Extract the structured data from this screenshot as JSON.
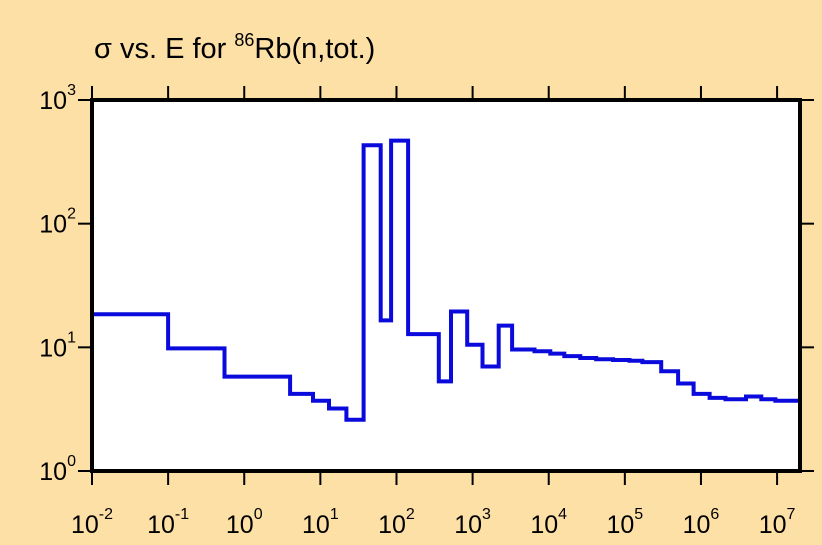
{
  "chart_data": {
    "type": "line",
    "step": true,
    "title": {
      "prefix": "σ vs. E for ",
      "isotope_mass": "86",
      "reaction": "Rb(n,tot.)"
    },
    "xlabel": "",
    "ylabel": "",
    "x_scale": "log",
    "y_scale": "log",
    "xlim": [
      0.01,
      20000000
    ],
    "ylim": [
      1,
      1000
    ],
    "grid": false,
    "colors": {
      "background": "#fde0a6",
      "plot_area": "#ffffff",
      "series": "#0a0adc",
      "axes": "#000000"
    },
    "x_ticks": [
      {
        "value": 0.01,
        "base": "10",
        "exp": "-2"
      },
      {
        "value": 0.1,
        "base": "10",
        "exp": "-1"
      },
      {
        "value": 1,
        "base": "10",
        "exp": "0"
      },
      {
        "value": 10,
        "base": "10",
        "exp": "1"
      },
      {
        "value": 100,
        "base": "10",
        "exp": "2"
      },
      {
        "value": 1000,
        "base": "10",
        "exp": "3"
      },
      {
        "value": 10000,
        "base": "10",
        "exp": "4"
      },
      {
        "value": 100000,
        "base": "10",
        "exp": "5"
      },
      {
        "value": 1000000,
        "base": "10",
        "exp": "6"
      },
      {
        "value": 10000000,
        "base": "10",
        "exp": "7"
      }
    ],
    "y_ticks": [
      {
        "value": 1,
        "base": "10",
        "exp": "0"
      },
      {
        "value": 10,
        "base": "10",
        "exp": "1"
      },
      {
        "value": 100,
        "base": "10",
        "exp": "2"
      },
      {
        "value": 1000,
        "base": "10",
        "exp": "3"
      }
    ],
    "series": [
      {
        "name": "",
        "points": [
          [
            0.01,
            1
          ],
          [
            0.01,
            18.5
          ],
          [
            0.1,
            18.5
          ],
          [
            0.1,
            9.8
          ],
          [
            0.55,
            9.8
          ],
          [
            0.55,
            5.8
          ],
          [
            4.0,
            5.8
          ],
          [
            4.0,
            4.2
          ],
          [
            8.0,
            4.2
          ],
          [
            8.0,
            3.7
          ],
          [
            13.0,
            3.7
          ],
          [
            13.0,
            3.2
          ],
          [
            22.0,
            3.2
          ],
          [
            22.0,
            2.6
          ],
          [
            37.0,
            2.6
          ],
          [
            37.0,
            430
          ],
          [
            62.0,
            430
          ],
          [
            62.0,
            16.5
          ],
          [
            85.0,
            16.5
          ],
          [
            85.0,
            470
          ],
          [
            142.0,
            470
          ],
          [
            142.0,
            12.8
          ],
          [
            360.0,
            12.8
          ],
          [
            360.0,
            5.3
          ],
          [
            520.0,
            5.3
          ],
          [
            520.0,
            19.5
          ],
          [
            850.0,
            19.5
          ],
          [
            850.0,
            10.5
          ],
          [
            1350.0,
            10.5
          ],
          [
            1350.0,
            7.0
          ],
          [
            2200.0,
            7.0
          ],
          [
            2200.0,
            15.0
          ],
          [
            3300.0,
            15.0
          ],
          [
            3300.0,
            9.6
          ],
          [
            6500.0,
            9.6
          ],
          [
            6500.0,
            9.3
          ],
          [
            10500.0,
            9.3
          ],
          [
            10500.0,
            8.9
          ],
          [
            16000.0,
            8.9
          ],
          [
            16000.0,
            8.5
          ],
          [
            26000.0,
            8.5
          ],
          [
            26000.0,
            8.2
          ],
          [
            42000.0,
            8.2
          ],
          [
            42000.0,
            8.0
          ],
          [
            70000.0,
            8.0
          ],
          [
            70000.0,
            7.9
          ],
          [
            115000.0,
            7.9
          ],
          [
            115000.0,
            7.8
          ],
          [
            170000.0,
            7.8
          ],
          [
            170000.0,
            7.6
          ],
          [
            300000.0,
            7.6
          ],
          [
            300000.0,
            6.4
          ],
          [
            500000.0,
            6.4
          ],
          [
            500000.0,
            5.1
          ],
          [
            800000.0,
            5.1
          ],
          [
            800000.0,
            4.2
          ],
          [
            1300000.0,
            4.2
          ],
          [
            1300000.0,
            3.9
          ],
          [
            2100000.0,
            3.9
          ],
          [
            2100000.0,
            3.8
          ],
          [
            3900000.0,
            3.8
          ],
          [
            3900000.0,
            4.0
          ],
          [
            6200000.0,
            4.0
          ],
          [
            6200000.0,
            3.8
          ],
          [
            9500000.0,
            3.8
          ],
          [
            9500000.0,
            3.7
          ],
          [
            20000000.0,
            3.7
          ],
          [
            20000000.0,
            1
          ]
        ]
      }
    ]
  }
}
